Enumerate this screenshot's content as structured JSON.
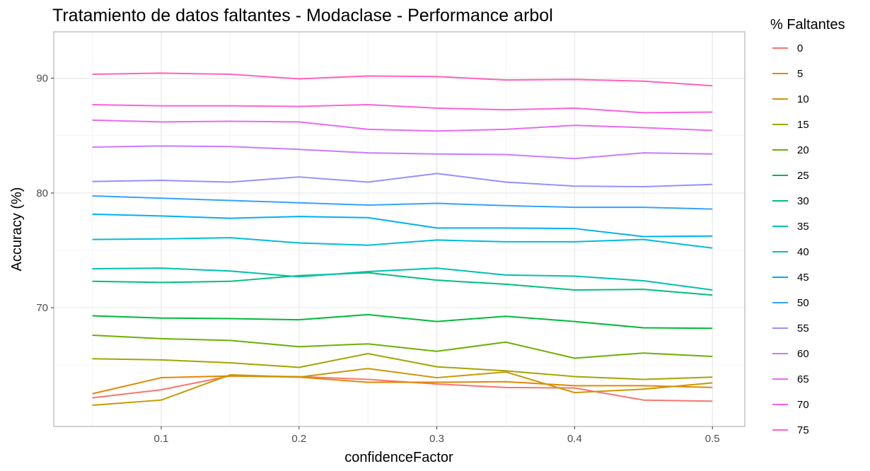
{
  "chart_data": {
    "type": "line",
    "title": "Tratamiento de datos faltantes - Modaclase - Performance arbol",
    "xlabel": "confidenceFactor",
    "ylabel": "Accuracy (%)",
    "x": [
      0.05,
      0.1,
      0.15,
      0.2,
      0.25,
      0.3,
      0.35,
      0.4,
      0.45,
      0.5
    ],
    "xlim": [
      0.022,
      0.5235
    ],
    "ylim": [
      59.65,
      94.05
    ],
    "xticks": [
      0.1,
      0.2,
      0.3,
      0.4,
      0.5
    ],
    "xtick_labels": [
      "0.1",
      "0.2",
      "0.3",
      "0.4",
      "0.5"
    ],
    "yticks": [
      70,
      80,
      90
    ],
    "ytick_labels": [
      "70",
      "80",
      "90"
    ],
    "grid": true,
    "legend": {
      "title": "% Faltantes",
      "position": "right"
    },
    "series": [
      {
        "name": "0",
        "color": "#F8766D",
        "values": [
          62.15,
          62.85,
          64.05,
          64.0,
          63.75,
          63.35,
          63.05,
          63.0,
          61.95,
          61.85
        ]
      },
      {
        "name": "5",
        "color": "#E58700",
        "values": [
          62.5,
          63.9,
          64.05,
          63.95,
          63.5,
          63.5,
          63.55,
          63.2,
          63.2,
          63.05
        ]
      },
      {
        "name": "10",
        "color": "#C99800",
        "values": [
          61.5,
          61.95,
          64.15,
          63.95,
          64.7,
          63.9,
          64.4,
          62.6,
          62.9,
          63.45
        ]
      },
      {
        "name": "15",
        "color": "#A3A500",
        "values": [
          65.55,
          65.45,
          65.2,
          64.8,
          66.0,
          64.85,
          64.5,
          64.0,
          63.75,
          63.95
        ]
      },
      {
        "name": "20",
        "color": "#6BB100",
        "values": [
          67.6,
          67.3,
          67.15,
          66.6,
          66.85,
          66.2,
          67.0,
          65.6,
          66.05,
          65.75
        ]
      },
      {
        "name": "25",
        "color": "#00BA38",
        "values": [
          69.3,
          69.1,
          69.05,
          68.95,
          69.4,
          68.8,
          69.25,
          68.8,
          68.25,
          68.2
        ]
      },
      {
        "name": "30",
        "color": "#00BF7D",
        "values": [
          72.3,
          72.2,
          72.3,
          72.8,
          73.05,
          72.4,
          72.05,
          71.55,
          71.6,
          71.1
        ]
      },
      {
        "name": "35",
        "color": "#00C0AF",
        "values": [
          73.4,
          73.45,
          73.2,
          72.7,
          73.15,
          73.45,
          72.85,
          72.75,
          72.35,
          71.55
        ]
      },
      {
        "name": "40",
        "color": "#00BCD8",
        "values": [
          75.95,
          76.0,
          76.1,
          75.65,
          75.45,
          75.9,
          75.75,
          75.75,
          75.95,
          75.2
        ]
      },
      {
        "name": "45",
        "color": "#00B0F6",
        "values": [
          78.15,
          78.0,
          77.8,
          77.95,
          77.85,
          76.95,
          76.95,
          76.9,
          76.2,
          76.25
        ]
      },
      {
        "name": "50",
        "color": "#35A2FF",
        "values": [
          79.75,
          79.55,
          79.35,
          79.15,
          78.95,
          79.1,
          78.9,
          78.75,
          78.75,
          78.6
        ]
      },
      {
        "name": "55",
        "color": "#9590FF",
        "values": [
          81.0,
          81.1,
          80.95,
          81.4,
          80.95,
          81.7,
          80.95,
          80.6,
          80.55,
          80.75
        ]
      },
      {
        "name": "60",
        "color": "#C77CFF",
        "values": [
          84.0,
          84.1,
          84.05,
          83.8,
          83.5,
          83.4,
          83.35,
          83.0,
          83.5,
          83.4
        ]
      },
      {
        "name": "65",
        "color": "#E76BF3",
        "values": [
          86.35,
          86.2,
          86.25,
          86.2,
          85.55,
          85.4,
          85.55,
          85.9,
          85.7,
          85.45
        ]
      },
      {
        "name": "70",
        "color": "#FA62DB",
        "values": [
          87.7,
          87.6,
          87.6,
          87.55,
          87.7,
          87.4,
          87.25,
          87.4,
          87.0,
          87.05
        ]
      },
      {
        "name": "75",
        "color": "#FF62BC",
        "values": [
          90.35,
          90.45,
          90.35,
          89.95,
          90.2,
          90.15,
          89.85,
          89.9,
          89.75,
          89.35
        ]
      }
    ]
  }
}
